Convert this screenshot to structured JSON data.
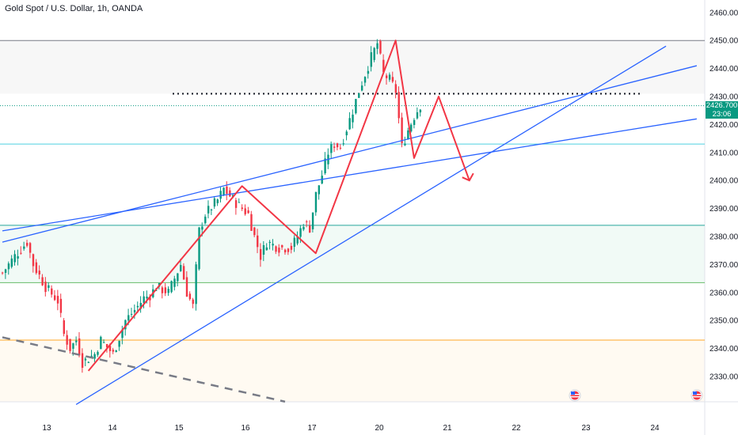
{
  "header": {
    "title": "Gold Spot / U.S. Dollar, 1h, OANDA"
  },
  "price_tag": {
    "price": "2426.700",
    "countdown": "23:06",
    "color": "#089981"
  },
  "colors": {
    "up": "#089981",
    "down": "#f23645",
    "pattern": "#f23645",
    "trend": "#2962ff"
  },
  "icons": [
    "us-flag-event-icon",
    "us-flag-event-icon"
  ],
  "chart_data": {
    "type": "candlestick",
    "title": "Gold Spot / U.S. Dollar, 1h, OANDA",
    "x_tick_labels": [
      "13",
      "14",
      "15",
      "16",
      "17",
      "20",
      "21",
      "22",
      "23",
      "24"
    ],
    "y_tick_labels": [
      "2330.000",
      "2340.000",
      "2350.000",
      "2360.000",
      "2370.000",
      "2380.000",
      "2390.000",
      "2400.000",
      "2410.000",
      "2420.000",
      "2430.000",
      "2440.000",
      "2450.000",
      "2460.000"
    ],
    "ylim": [
      2321,
      2464
    ],
    "current_price": 2426.7,
    "candle_close_path": [
      [
        0,
        2367
      ],
      [
        2,
        2373
      ],
      [
        4,
        2378
      ],
      [
        5,
        2370
      ],
      [
        7,
        2362
      ],
      [
        9,
        2357
      ],
      [
        10,
        2345
      ],
      [
        11,
        2340
      ],
      [
        12,
        2343
      ],
      [
        13,
        2335
      ],
      [
        15,
        2338
      ],
      [
        16,
        2343
      ],
      [
        18,
        2338
      ],
      [
        20,
        2350
      ],
      [
        22,
        2355
      ],
      [
        23,
        2358
      ],
      [
        24,
        2359
      ],
      [
        25,
        2362
      ],
      [
        27,
        2360
      ],
      [
        29,
        2370
      ],
      [
        30,
        2360
      ],
      [
        31,
        2355
      ],
      [
        32,
        2382
      ],
      [
        33,
        2388
      ],
      [
        35,
        2393
      ],
      [
        36,
        2397
      ],
      [
        38,
        2392
      ],
      [
        40,
        2388
      ],
      [
        41,
        2380
      ],
      [
        42,
        2373
      ],
      [
        43,
        2378
      ],
      [
        45,
        2376
      ],
      [
        47,
        2376
      ],
      [
        48,
        2380
      ],
      [
        49,
        2385
      ],
      [
        50,
        2383
      ],
      [
        51,
        2395
      ],
      [
        52,
        2402
      ],
      [
        53,
        2410
      ],
      [
        54,
        2413
      ],
      [
        55,
        2412
      ],
      [
        57,
        2425
      ],
      [
        58,
        2432
      ],
      [
        60,
        2444
      ],
      [
        61,
        2449
      ],
      [
        62,
        2438
      ],
      [
        63,
        2436
      ],
      [
        64,
        2432
      ],
      [
        65,
        2412
      ],
      [
        66,
        2418
      ],
      [
        67,
        2423
      ],
      [
        68,
        2427
      ]
    ],
    "horizontal_levels": [
      {
        "price": 2450.0,
        "color": "#787b86",
        "style": "solid"
      },
      {
        "price": 2431.0,
        "color": "#131722",
        "style": "dotted"
      },
      {
        "price": 2426.7,
        "color": "#089981",
        "style": "dotted"
      },
      {
        "price": 2413.0,
        "color": "#4dd0e1",
        "style": "solid"
      },
      {
        "price": 2384.0,
        "color": "#26a69a",
        "style": "solid"
      },
      {
        "price": 2363.5,
        "color": "#66bb6a",
        "style": "solid"
      },
      {
        "price": 2343.0,
        "color": "#ffa726",
        "style": "solid"
      }
    ],
    "pattern_path": [
      [
        14,
        2332
      ],
      [
        39,
        2398
      ],
      [
        51,
        2374
      ],
      [
        64,
        2450
      ],
      [
        67,
        2408
      ],
      [
        71,
        2430
      ],
      [
        76,
        2400
      ]
    ],
    "trend_lines": [
      {
        "from": [
          12,
          2320
        ],
        "to": [
          108,
          2448
        ]
      },
      {
        "from": [
          0,
          2378
        ],
        "to": [
          113,
          2441
        ]
      },
      {
        "from": [
          0,
          2382
        ],
        "to": [
          113,
          2422
        ]
      }
    ],
    "dashed_line": {
      "from": [
        0,
        2344
      ],
      "to": [
        46,
        2321
      ]
    }
  }
}
